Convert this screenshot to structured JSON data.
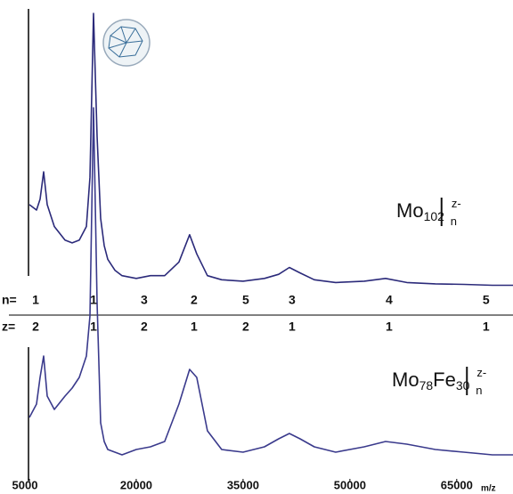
{
  "chart_data": {
    "type": "line",
    "x_label": "m/z",
    "xlim": [
      5000,
      72900
    ],
    "xticks": [
      5000,
      20000,
      35000,
      50000,
      65000
    ],
    "x": [
      5000,
      6000,
      6500,
      7000,
      7500,
      8500,
      10000,
      11000,
      12000,
      13000,
      13500,
      14000,
      14500,
      15000,
      15500,
      16000,
      17000,
      18000,
      20000,
      22000,
      24000,
      26000,
      27500,
      28500,
      30000,
      32000,
      35000,
      38000,
      40000,
      41500,
      43000,
      45000,
      48000,
      52000,
      55000,
      58000,
      62000,
      66000,
      70000,
      72900
    ],
    "series": [
      {
        "color": "#2b2a7a",
        "label_parts": [
          "Mo",
          "102",
          "z-",
          "n"
        ],
        "values": [
          30,
          28,
          32,
          42,
          30,
          22,
          17,
          16,
          17,
          22,
          40,
          100,
          55,
          25,
          15,
          10,
          6,
          4,
          3,
          4,
          4,
          9,
          19,
          12,
          4,
          2.5,
          2,
          3,
          4.5,
          7,
          5,
          2.5,
          1.5,
          2,
          3,
          1.5,
          1,
          0.8,
          0.5,
          0.5
        ]
      },
      {
        "color": "#3a3a8c",
        "label_parts": [
          "Mo",
          "78",
          "Fe",
          "30",
          "z-",
          "n"
        ],
        "values": [
          17,
          22,
          32,
          40,
          25,
          20,
          25,
          28,
          32,
          40,
          55,
          133,
          60,
          15,
          8,
          5,
          4,
          3,
          5,
          6,
          8,
          22,
          35,
          32,
          12,
          5,
          4,
          6,
          9,
          11,
          9,
          6,
          4,
          6,
          8,
          7,
          5,
          4,
          3,
          3
        ]
      }
    ],
    "peak_labels": {
      "n_label": "n=",
      "z_label": "z=",
      "x": [
        5875,
        14000,
        21125,
        28125,
        35375,
        41875,
        55500,
        69125
      ],
      "n": [
        1,
        1,
        3,
        2,
        5,
        3,
        4,
        5
      ],
      "z": [
        2,
        1,
        2,
        1,
        2,
        1,
        1,
        1
      ]
    }
  }
}
